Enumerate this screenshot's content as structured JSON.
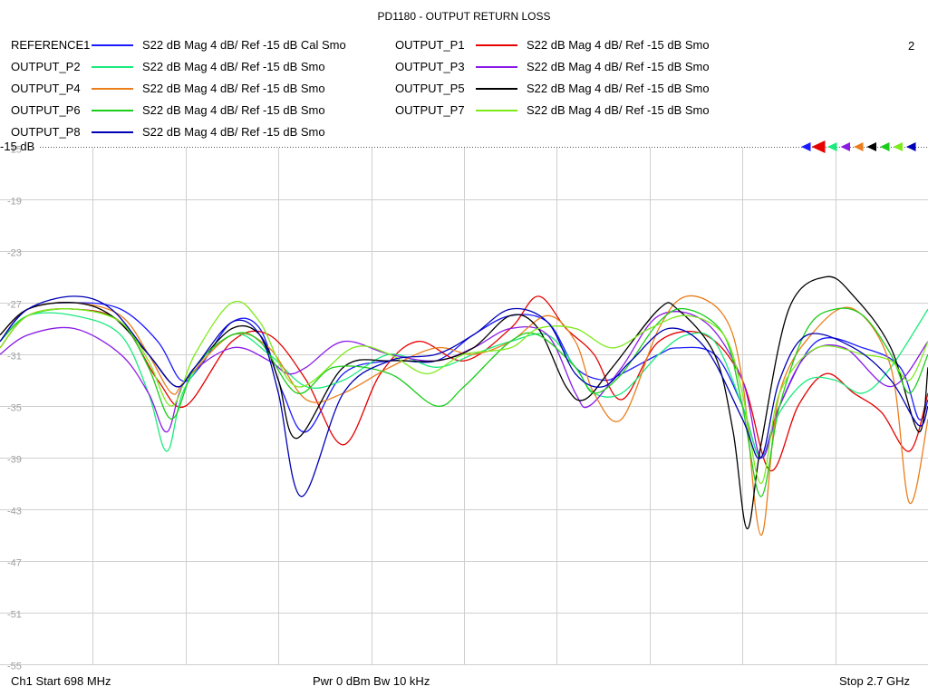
{
  "chart_data": {
    "type": "line",
    "title": "PD1180 - OUTPUT RETURN LOSS",
    "window_number": "2",
    "ref_label": "-15 dB",
    "y_ticks": [
      "-15",
      "-19",
      "-23",
      "-27",
      "-31",
      "-35",
      "-39",
      "-43",
      "-47",
      "-51",
      "-55"
    ],
    "ylim": [
      -55,
      -15
    ],
    "xlim": [
      0,
      1
    ],
    "grid": true,
    "x_unit": "fraction of span 698 MHz - 2.7 GHz",
    "series": [
      {
        "name": "REFERENCE1",
        "desc": "S22  dB Mag  4 dB/ Ref -15 dB  Cal Smo",
        "color": "#1a1aff",
        "x": [
          0,
          0.03,
          0.08,
          0.13,
          0.17,
          0.195,
          0.215,
          0.25,
          0.28,
          0.305,
          0.33,
          0.37,
          0.42,
          0.47,
          0.51,
          0.55,
          0.59,
          0.62,
          0.65,
          0.67,
          0.71,
          0.73,
          0.77,
          0.8,
          0.82,
          0.84,
          0.88,
          0.93,
          0.97,
          0.99,
          1
        ],
        "y": [
          -30,
          -27.5,
          -27,
          -27.5,
          -30,
          -33,
          -32,
          -28.5,
          -29,
          -34,
          -37,
          -32.5,
          -31.5,
          -31.5,
          -29.5,
          -28,
          -28.5,
          -32,
          -33,
          -32.5,
          -31,
          -30.5,
          -31,
          -35,
          -39,
          -35,
          -30,
          -30.5,
          -32,
          -36,
          -34.5
        ]
      },
      {
        "name": "OUTPUT_P1",
        "desc": "S22  dB Mag  4 dB/ Ref -15 dB  Smo",
        "color": "#e60000",
        "x": [
          0,
          0.03,
          0.08,
          0.13,
          0.17,
          0.2,
          0.25,
          0.29,
          0.33,
          0.37,
          0.41,
          0.45,
          0.5,
          0.55,
          0.58,
          0.61,
          0.64,
          0.67,
          0.71,
          0.76,
          0.8,
          0.83,
          0.86,
          0.89,
          0.92,
          0.95,
          0.98,
          1
        ],
        "y": [
          -30.5,
          -28,
          -27.5,
          -28.5,
          -33,
          -35,
          -30,
          -29.5,
          -33,
          -38,
          -32.5,
          -30,
          -31.5,
          -29,
          -26.5,
          -29,
          -31,
          -34.5,
          -30,
          -29.5,
          -33,
          -40,
          -35,
          -32.5,
          -34,
          -35.5,
          -38.5,
          -34
        ]
      },
      {
        "name": "OUTPUT_P2",
        "desc": "S22  dB Mag  4 dB/ Ref -15 dB  Smo",
        "color": "#1aeb7d",
        "x": [
          0,
          0.03,
          0.08,
          0.13,
          0.16,
          0.18,
          0.2,
          0.25,
          0.29,
          0.33,
          0.37,
          0.42,
          0.47,
          0.51,
          0.55,
          0.59,
          0.62,
          0.64,
          0.67,
          0.71,
          0.74,
          0.77,
          0.8,
          0.82,
          0.84,
          0.87,
          0.9,
          0.93,
          0.96,
          1
        ],
        "y": [
          -30,
          -28,
          -28,
          -29.5,
          -34,
          -38.5,
          -33.5,
          -29.5,
          -31,
          -33.5,
          -33,
          -31,
          -32,
          -31,
          -30,
          -29.5,
          -32,
          -34,
          -34,
          -31,
          -29.5,
          -30,
          -35,
          -39,
          -35.5,
          -33,
          -33,
          -34,
          -32,
          -27.5
        ]
      },
      {
        "name": "OUTPUT_P3",
        "desc": "S22  dB Mag  4 dB/ Ref -15 dB  Smo",
        "color": "#8a1ae6",
        "x": [
          0,
          0.03,
          0.08,
          0.13,
          0.16,
          0.18,
          0.2,
          0.25,
          0.29,
          0.31,
          0.33,
          0.37,
          0.42,
          0.47,
          0.51,
          0.55,
          0.59,
          0.62,
          0.635,
          0.67,
          0.71,
          0.76,
          0.8,
          0.82,
          0.84,
          0.87,
          0.91,
          0.96,
          1
        ],
        "y": [
          -31,
          -29.5,
          -29,
          -31,
          -34,
          -37,
          -33,
          -30.5,
          -31.5,
          -32.5,
          -32,
          -30,
          -31,
          -31.5,
          -30.5,
          -29,
          -29.5,
          -34,
          -35,
          -32,
          -28,
          -28.5,
          -33,
          -39,
          -35,
          -31,
          -30.5,
          -33.5,
          -30
        ]
      },
      {
        "name": "OUTPUT_P4",
        "desc": "S22  dB Mag  4 dB/ Ref -15 dB  Smo",
        "color": "#eb7d1a",
        "x": [
          0,
          0.03,
          0.08,
          0.13,
          0.16,
          0.185,
          0.2,
          0.25,
          0.29,
          0.33,
          0.37,
          0.42,
          0.47,
          0.51,
          0.55,
          0.59,
          0.62,
          0.64,
          0.67,
          0.71,
          0.74,
          0.78,
          0.8,
          0.82,
          0.84,
          0.88,
          0.92,
          0.96,
          0.98,
          1
        ],
        "y": [
          -29.5,
          -27.5,
          -27,
          -28,
          -31,
          -34,
          -33,
          -29.5,
          -30.5,
          -34.5,
          -34,
          -32,
          -30.5,
          -31,
          -30,
          -28,
          -30,
          -34,
          -36,
          -29,
          -26.5,
          -28,
          -33,
          -45,
          -34,
          -29,
          -27.5,
          -32,
          -42.5,
          -36
        ]
      },
      {
        "name": "OUTPUT_P5",
        "desc": "S22  dB Mag  4 dB/ Ref -15 dB  Smo",
        "color": "#000000",
        "x": [
          0,
          0.03,
          0.08,
          0.12,
          0.16,
          0.19,
          0.21,
          0.25,
          0.28,
          0.3,
          0.32,
          0.37,
          0.42,
          0.47,
          0.51,
          0.55,
          0.58,
          0.61,
          0.63,
          0.66,
          0.71,
          0.73,
          0.77,
          0.79,
          0.805,
          0.82,
          0.85,
          0.89,
          0.92,
          0.96,
          0.99,
          1
        ],
        "y": [
          -29.5,
          -27.5,
          -27,
          -28,
          -31,
          -33.5,
          -32,
          -29,
          -29.5,
          -33,
          -37.5,
          -32,
          -31.5,
          -31.5,
          -30.5,
          -28,
          -29,
          -33.5,
          -34.5,
          -32,
          -27.5,
          -27.5,
          -31,
          -37,
          -44.5,
          -38,
          -27.5,
          -25,
          -26.5,
          -30.5,
          -37,
          -32
        ]
      },
      {
        "name": "OUTPUT_P6",
        "desc": "S22  dB Mag  4 dB/ Ref -15 dB  Smo",
        "color": "#1acd1a",
        "x": [
          0,
          0.03,
          0.08,
          0.13,
          0.16,
          0.185,
          0.21,
          0.25,
          0.28,
          0.32,
          0.36,
          0.42,
          0.47,
          0.5,
          0.55,
          0.58,
          0.62,
          0.64,
          0.67,
          0.71,
          0.74,
          0.78,
          0.8,
          0.82,
          0.84,
          0.87,
          0.9,
          0.93,
          0.96,
          0.98,
          1
        ],
        "y": [
          -30,
          -28,
          -27.5,
          -28.5,
          -32,
          -36,
          -32,
          -29.5,
          -30,
          -34,
          -32,
          -32.5,
          -35,
          -33.5,
          -30,
          -29.5,
          -32,
          -34,
          -32.5,
          -28.5,
          -27.5,
          -29.5,
          -35,
          -42,
          -35,
          -29,
          -27.5,
          -28,
          -31,
          -34,
          -31
        ]
      },
      {
        "name": "OUTPUT_P7",
        "desc": "S22  dB Mag  4 dB/ Ref -15 dB  Smo",
        "color": "#7dea1a",
        "x": [
          0,
          0.03,
          0.08,
          0.13,
          0.16,
          0.185,
          0.21,
          0.25,
          0.28,
          0.32,
          0.38,
          0.42,
          0.46,
          0.5,
          0.55,
          0.58,
          0.62,
          0.66,
          0.7,
          0.74,
          0.78,
          0.8,
          0.82,
          0.84,
          0.88,
          0.93,
          0.96,
          0.98,
          1
        ],
        "y": [
          -30.5,
          -28,
          -27.5,
          -28.5,
          -31.5,
          -35,
          -31,
          -27,
          -28.5,
          -33.5,
          -30.5,
          -31,
          -32.5,
          -31,
          -30.5,
          -29,
          -29,
          -30.5,
          -29,
          -28,
          -29.5,
          -34,
          -41,
          -34,
          -30.5,
          -31,
          -31.5,
          -33,
          -30
        ]
      },
      {
        "name": "OUTPUT_P8",
        "desc": "S22  dB Mag  4 dB/ Ref -15 dB  Smo",
        "color": "#0000b4",
        "x": [
          0,
          0.03,
          0.08,
          0.12,
          0.16,
          0.19,
          0.21,
          0.25,
          0.28,
          0.3,
          0.325,
          0.37,
          0.42,
          0.47,
          0.51,
          0.55,
          0.59,
          0.62,
          0.65,
          0.68,
          0.72,
          0.76,
          0.8,
          0.82,
          0.84,
          0.87,
          0.92,
          0.96,
          0.99,
          1
        ],
        "y": [
          -30,
          -27.5,
          -26.5,
          -27.5,
          -31,
          -33.5,
          -32,
          -28.5,
          -29.5,
          -34,
          -42,
          -34,
          -31.5,
          -31,
          -29.5,
          -27.5,
          -28.5,
          -32.5,
          -33.5,
          -31.5,
          -29,
          -30.5,
          -36,
          -39,
          -33,
          -29.5,
          -30.5,
          -33,
          -36.5,
          -35
        ]
      }
    ]
  },
  "footer": {
    "start": "Ch1  Start  698 MHz",
    "center": "Pwr  0 dBm  Bw  10 kHz",
    "stop": "Stop  2.7 GHz"
  }
}
